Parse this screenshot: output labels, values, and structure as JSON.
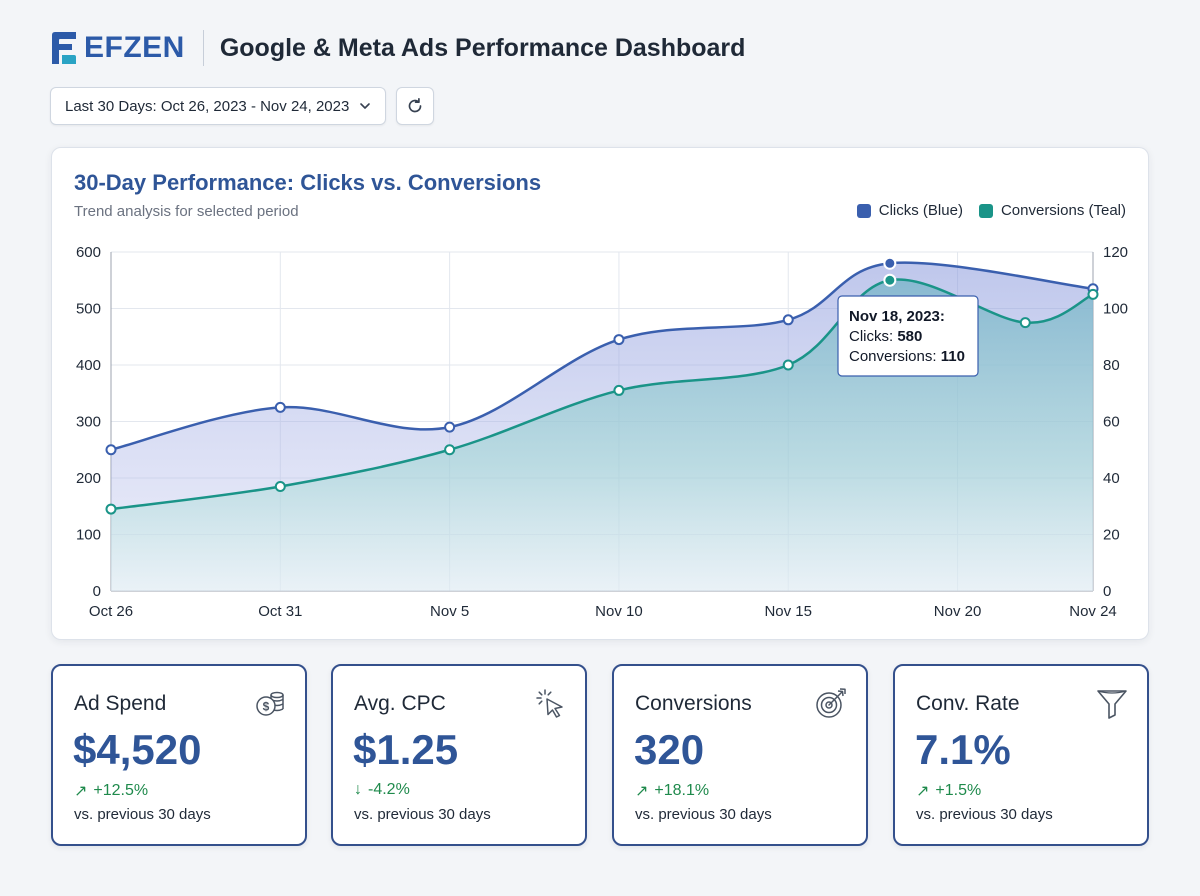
{
  "brand": {
    "logo_text": "EFZEN"
  },
  "header": {
    "title": "Google & Meta Ads Performance Dashboard"
  },
  "toolbar": {
    "date_range": "Last 30 Days: Oct 26, 2023 - Nov 24, 2023"
  },
  "chart_card": {
    "title": "30-Day Performance: Clicks vs. Conversions",
    "subtitle": "Trend analysis for selected period",
    "legend": [
      {
        "label": "Clicks (Blue)",
        "color": "#3a5fae"
      },
      {
        "label": "Conversions (Teal)",
        "color": "#1a9488"
      }
    ],
    "tooltip": {
      "date": "Nov 18, 2023:",
      "clicks_label": "Clicks: ",
      "clicks_value": "580",
      "conversions_label": "Conversions: ",
      "conversions_value": "110"
    }
  },
  "chart_data": {
    "type": "area",
    "title": "30-Day Performance: Clicks vs. Conversions",
    "subtitle": "Trend analysis for selected period",
    "x_tick_labels": [
      "Oct 26",
      "Oct 31",
      "Nov 5",
      "Nov 10",
      "Nov 15",
      "Nov 20",
      "Nov 24"
    ],
    "x_ticks": [
      "2023-10-26",
      "2023-10-31",
      "2023-11-05",
      "2023-11-10",
      "2023-11-15",
      "2023-11-20",
      "2023-11-24"
    ],
    "y_left": {
      "ticks": [
        0,
        100,
        200,
        300,
        400,
        500,
        600
      ],
      "range": [
        0,
        600
      ]
    },
    "y_right": {
      "ticks": [
        0,
        20,
        40,
        60,
        80,
        100,
        120
      ],
      "range": [
        0,
        120
      ]
    },
    "grid": true,
    "legend_position": "top-right",
    "series": [
      {
        "name": "Clicks (Blue)",
        "axis": "left",
        "color": "#3a5fae",
        "points": [
          {
            "x": "2023-10-26",
            "y": 250
          },
          {
            "x": "2023-10-31",
            "y": 325
          },
          {
            "x": "2023-11-05",
            "y": 290
          },
          {
            "x": "2023-11-10",
            "y": 445
          },
          {
            "x": "2023-11-15",
            "y": 480
          },
          {
            "x": "2023-11-18",
            "y": 580
          },
          {
            "x": "2023-11-24",
            "y": 535
          }
        ]
      },
      {
        "name": "Conversions (Teal)",
        "axis": "right",
        "color": "#1a9488",
        "points": [
          {
            "x": "2023-10-26",
            "y": 29
          },
          {
            "x": "2023-10-31",
            "y": 37
          },
          {
            "x": "2023-11-05",
            "y": 50
          },
          {
            "x": "2023-11-10",
            "y": 71
          },
          {
            "x": "2023-11-15",
            "y": 80
          },
          {
            "x": "2023-11-18",
            "y": 110
          },
          {
            "x": "2023-11-22",
            "y": 95
          },
          {
            "x": "2023-11-24",
            "y": 105
          }
        ]
      }
    ]
  },
  "kpis": [
    {
      "label": "Ad Spend",
      "value": "$4,520",
      "arrow": "↗",
      "delta": "+12.5%",
      "direction": "up",
      "caption": "vs. previous 30 days",
      "icon": "coins-icon"
    },
    {
      "label": "Avg. CPC",
      "value": "$1.25",
      "arrow": "↓",
      "delta": "-4.2%",
      "direction": "down",
      "caption": "vs. previous 30 days",
      "icon": "cursor-click-icon"
    },
    {
      "label": "Conversions",
      "value": "320",
      "arrow": "↗",
      "delta": "+18.1%",
      "direction": "up",
      "caption": "vs. previous 30 days",
      "icon": "target-icon"
    },
    {
      "label": "Conv. Rate",
      "value": "7.1%",
      "arrow": "↗",
      "delta": "+1.5%",
      "direction": "up",
      "caption": "vs. previous 30 days",
      "icon": "funnel-icon"
    }
  ],
  "colors": {
    "accent": "#2f5597",
    "positive": "#1f8a4c",
    "card_border": "#34508c"
  }
}
